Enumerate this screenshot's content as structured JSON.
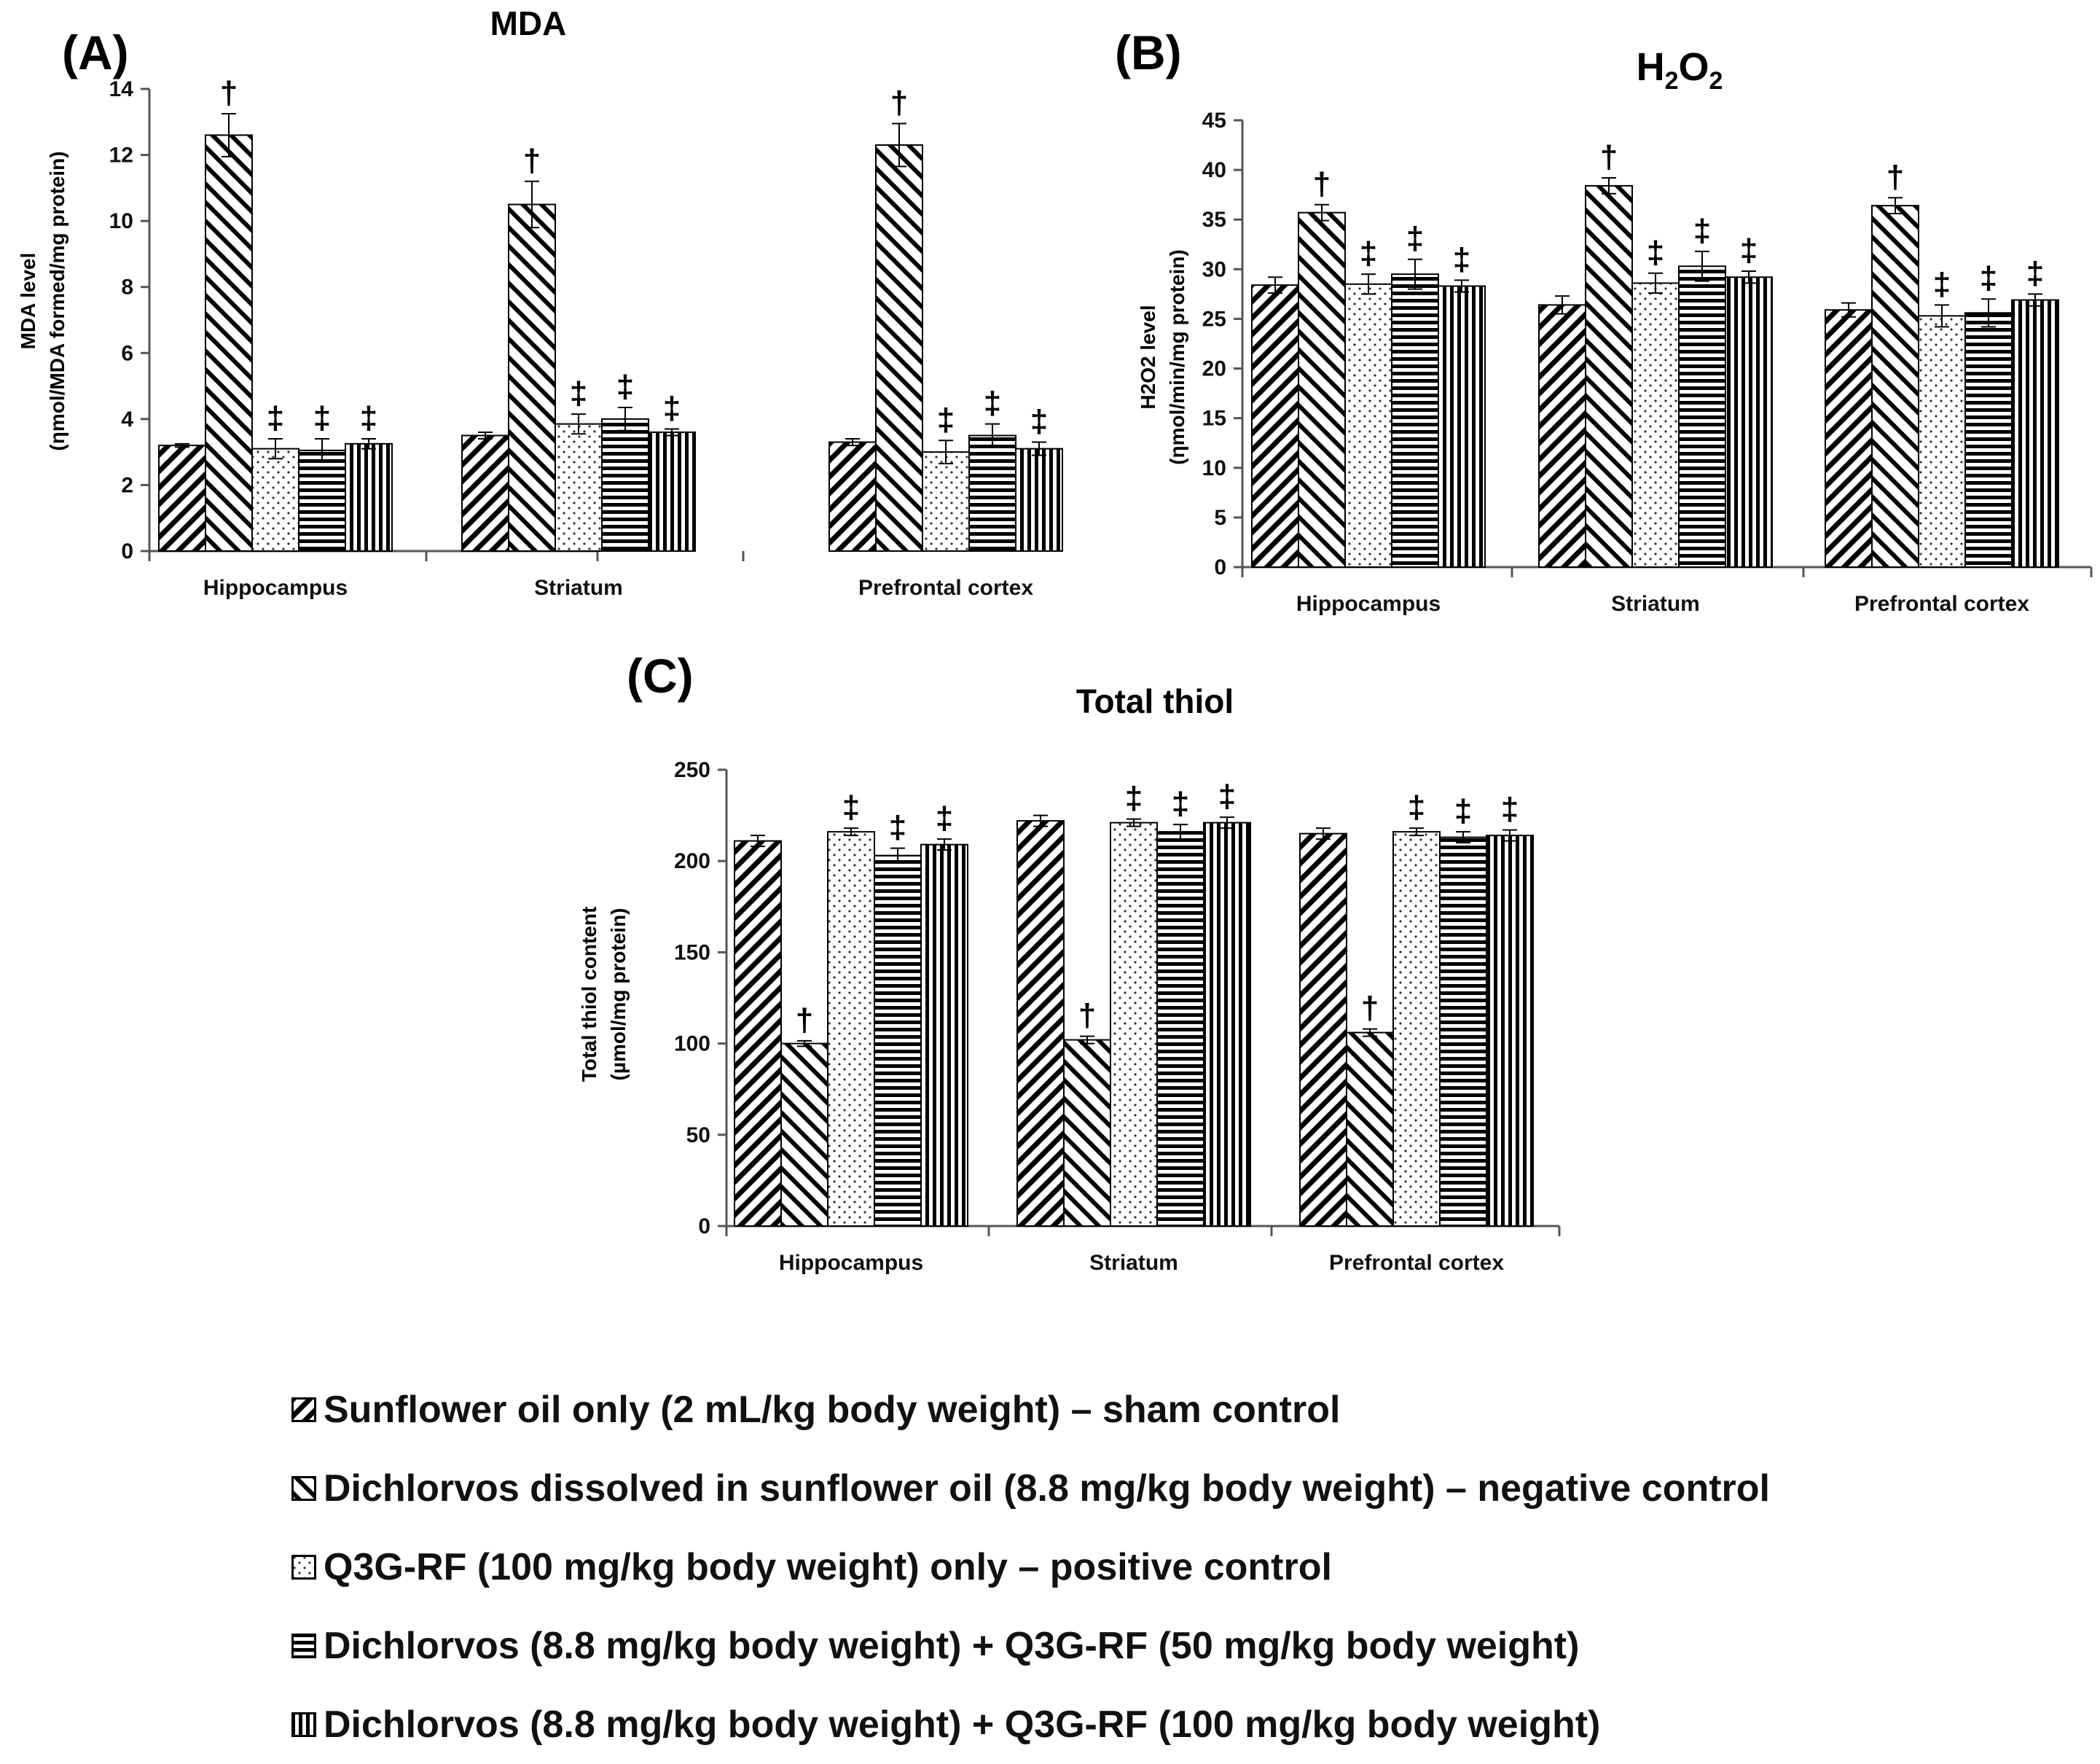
{
  "chart_data": [
    {
      "type": "bar",
      "panel_label": "(A)",
      "title": "MDA",
      "ylabel_lines": [
        "MDA level",
        "(ηmol/MDA formed/mg protein)"
      ],
      "xlabel": "",
      "ylim": [
        0,
        14
      ],
      "yticks": [
        0,
        2,
        4,
        6,
        8,
        10,
        12,
        14
      ],
      "categories": [
        "Hippocampus",
        "Striatum",
        "Prefrontal cortex"
      ],
      "series": [
        {
          "name": "Sunflower oil only (2 mL/kg body weight) – sham control",
          "values": [
            3.2,
            3.5,
            3.3
          ],
          "errors": [
            0.05,
            0.1,
            0.1
          ],
          "marks": [
            "",
            "",
            ""
          ]
        },
        {
          "name": "Dichlorvos dissolved in sunflower oil (8.8 mg/kg body weight) – negative control",
          "values": [
            12.6,
            10.5,
            12.3
          ],
          "errors": [
            0.65,
            0.7,
            0.65
          ],
          "marks": [
            "†",
            "†",
            "†"
          ]
        },
        {
          "name": "Q3G-RF (100 mg/kg body weight) only – positive control",
          "values": [
            3.1,
            3.85,
            3.0
          ],
          "errors": [
            0.3,
            0.3,
            0.35
          ],
          "marks": [
            "‡",
            "‡",
            "‡"
          ]
        },
        {
          "name": "Dichlorvos (8.8 mg/kg body weight) + Q3G-RF (50 mg/kg body weight)",
          "values": [
            3.05,
            4.0,
            3.5
          ],
          "errors": [
            0.35,
            0.35,
            0.35
          ],
          "marks": [
            "‡",
            "‡",
            "‡"
          ]
        },
        {
          "name": "Dichlorvos (8.8 mg/kg body weight) + Q3G-RF (100 mg/kg body weight)",
          "values": [
            3.25,
            3.6,
            3.1
          ],
          "errors": [
            0.15,
            0.1,
            0.2
          ],
          "marks": [
            "‡",
            "‡",
            "‡"
          ]
        }
      ]
    },
    {
      "type": "bar",
      "panel_label": "(B)",
      "title_parts": [
        "H",
        "2",
        "O",
        "2"
      ],
      "ylabel_lines": [
        "H2O2 level",
        "(ηmol/min/mg protein)"
      ],
      "xlabel": "",
      "ylim": [
        0,
        45
      ],
      "yticks": [
        0,
        5,
        10,
        15,
        20,
        25,
        30,
        35,
        40,
        45
      ],
      "categories": [
        "Hippocampus",
        "Striatum",
        "Prefrontal cortex"
      ],
      "series": [
        {
          "name": "Sunflower oil only (2 mL/kg body weight) – sham control",
          "values": [
            28.4,
            26.4,
            25.9
          ],
          "errors": [
            0.8,
            0.9,
            0.7
          ],
          "marks": [
            "",
            "",
            ""
          ]
        },
        {
          "name": "Dichlorvos dissolved in sunflower oil (8.8 mg/kg body weight) – negative control",
          "values": [
            35.7,
            38.4,
            36.4
          ],
          "errors": [
            0.8,
            0.8,
            0.8
          ],
          "marks": [
            "†",
            "†",
            "†"
          ]
        },
        {
          "name": "Q3G-RF (100 mg/kg body weight) only – positive control",
          "values": [
            28.5,
            28.6,
            25.3
          ],
          "errors": [
            1.0,
            1.0,
            1.1
          ],
          "marks": [
            "‡",
            "‡",
            "‡"
          ]
        },
        {
          "name": "Dichlorvos (8.8 mg/kg body weight) + Q3G-RF (50 mg/kg body weight)",
          "values": [
            29.5,
            30.3,
            25.6
          ],
          "errors": [
            1.5,
            1.5,
            1.4
          ],
          "marks": [
            "‡",
            "‡",
            "‡"
          ]
        },
        {
          "name": "Dichlorvos (8.8 mg/kg body weight) + Q3G-RF (100 mg/kg body weight)",
          "values": [
            28.3,
            29.2,
            26.9
          ],
          "errors": [
            0.6,
            0.6,
            0.6
          ],
          "marks": [
            "‡",
            "‡",
            "‡"
          ]
        }
      ]
    },
    {
      "type": "bar",
      "panel_label": "(C)",
      "title": "Total thiol",
      "ylabel_lines": [
        "Total thiol content",
        "(µmol/mg protein)"
      ],
      "xlabel": "",
      "ylim": [
        0,
        250
      ],
      "yticks": [
        0,
        50,
        100,
        150,
        200,
        250
      ],
      "categories": [
        "Hippocampus",
        "Striatum",
        "Prefrontal cortex"
      ],
      "series": [
        {
          "name": "Sunflower oil only (2 mL/kg body weight) – sham control",
          "values": [
            211,
            222,
            215
          ],
          "errors": [
            3,
            3,
            3
          ],
          "marks": [
            "",
            "",
            ""
          ]
        },
        {
          "name": "Dichlorvos dissolved in sunflower oil (8.8 mg/kg body weight) – negative control",
          "values": [
            100,
            102,
            106
          ],
          "errors": [
            1.5,
            2,
            2
          ],
          "marks": [
            "†",
            "†",
            "†"
          ]
        },
        {
          "name": "Q3G-RF (100 mg/kg body weight) only – positive control",
          "values": [
            216,
            221,
            216
          ],
          "errors": [
            2,
            2,
            2
          ],
          "marks": [
            "‡",
            "‡",
            "‡"
          ]
        },
        {
          "name": "Dichlorvos (8.8 mg/kg body weight) + Q3G-RF (50 mg/kg body weight)",
          "values": [
            203,
            216,
            213
          ],
          "errors": [
            4,
            4,
            3
          ],
          "marks": [
            "‡",
            "‡",
            "‡"
          ]
        },
        {
          "name": "Dichlorvos (8.8 mg/kg body weight) + Q3G-RF (100 mg/kg body weight)",
          "values": [
            209,
            221,
            214
          ],
          "errors": [
            3,
            3,
            3
          ],
          "marks": [
            "‡",
            "‡",
            "‡"
          ]
        }
      ]
    }
  ],
  "legend": {
    "items": [
      {
        "pattern": "diag-down",
        "label": "Sunflower oil only (2 mL/kg body weight) – sham control"
      },
      {
        "pattern": "diag-up",
        "label": "Dichlorvos dissolved in sunflower oil (8.8 mg/kg body weight) – negative control"
      },
      {
        "pattern": "dots",
        "label": "Q3G-RF (100 mg/kg body weight) only – positive control"
      },
      {
        "pattern": "hlines",
        "label": "Dichlorvos (8.8 mg/kg body weight) + Q3G-RF (50 mg/kg body weight)"
      },
      {
        "pattern": "vlines",
        "label": "Dichlorvos (8.8 mg/kg body weight) + Q3G-RF (100 mg/kg body weight)"
      }
    ]
  },
  "series_patterns": [
    "diag-down",
    "diag-up",
    "dots",
    "hlines",
    "vlines"
  ]
}
